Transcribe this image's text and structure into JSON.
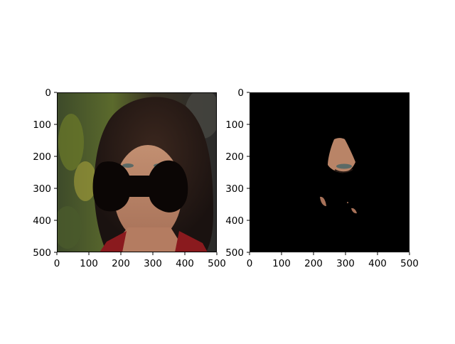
{
  "chart_data": [
    {
      "type": "image",
      "content": "portrait photo with a dark bow-tie shaped occlusion mask over the eyes, nose and mouth",
      "xlim": [
        0,
        500
      ],
      "ylim": [
        500,
        0
      ],
      "x_ticks": [
        "0",
        "100",
        "200",
        "300",
        "400",
        "500"
      ],
      "y_ticks": [
        "0",
        "100",
        "200",
        "300",
        "400",
        "500"
      ],
      "grid": false
    },
    {
      "type": "image",
      "content": "black background showing only small skin regions (nose and chin area) of the same face",
      "xlim": [
        0,
        500
      ],
      "ylim": [
        500,
        0
      ],
      "x_ticks": [
        "0",
        "100",
        "200",
        "300",
        "400",
        "500"
      ],
      "y_ticks": [
        "0",
        "100",
        "200",
        "300",
        "400",
        "500"
      ],
      "grid": false
    }
  ],
  "colors": {
    "mask": "#0b0605",
    "background_panel": "#000000",
    "hair": "#2a1c16",
    "skin": "#b88468",
    "dress": "#8a1a1e"
  }
}
